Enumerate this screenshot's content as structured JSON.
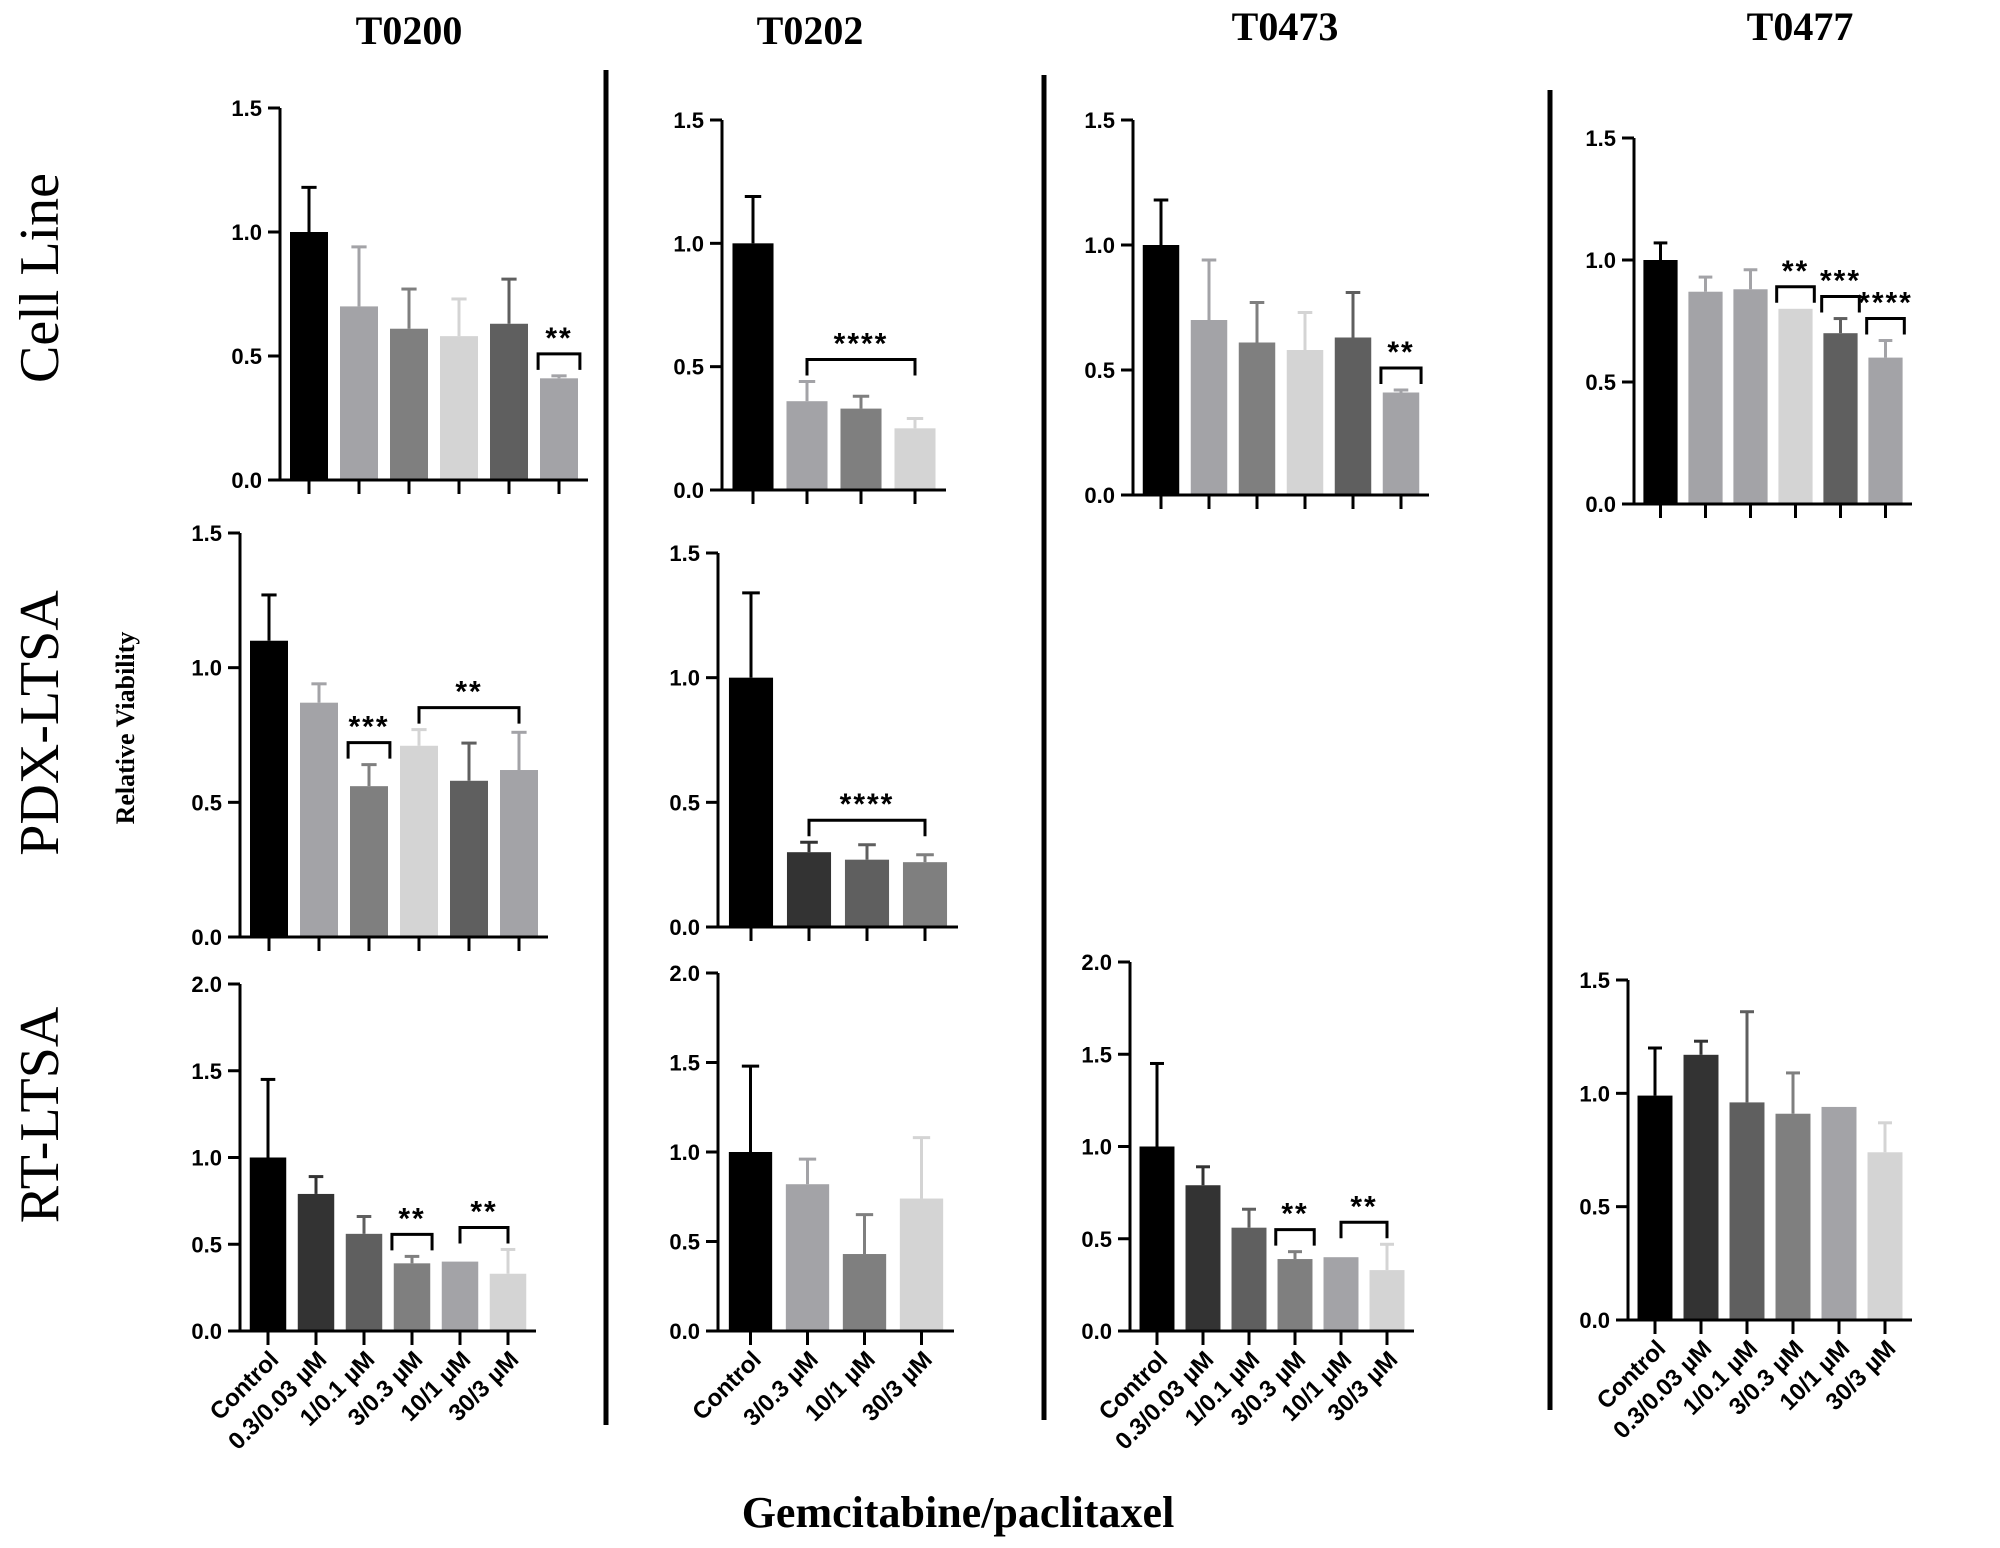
{
  "figure": {
    "column_titles": [
      "T0200",
      "T0202",
      "T0473",
      "T0477"
    ],
    "row_titles": [
      "Cell Line",
      "PDX-LTSA",
      "RT-LTSA"
    ],
    "y_axis_label": "Relative Viability",
    "x_axis_label": "Gemcitabine/paclitaxel"
  },
  "chart_data": [
    {
      "id": "T0200-cell-line",
      "type": "bar",
      "column": "T0200",
      "row": "Cell Line",
      "ylim": [
        0,
        1.5
      ],
      "yticks": [
        "0.0",
        "0.5",
        "1.0",
        "1.5"
      ],
      "categories": [
        "Control",
        "0.3/0.03 µM",
        "1/0.1 µM",
        "3/0.3 µM",
        "10/1 µM",
        "30/3 µM"
      ],
      "values": [
        1.0,
        0.7,
        0.61,
        0.58,
        0.63,
        0.41
      ],
      "errors": [
        0.18,
        0.24,
        0.16,
        0.15,
        0.18,
        0.01
      ],
      "colors": [
        "#000000",
        "#a3a3a7",
        "#7f7f7f",
        "#d4d4d4",
        "#5f5f5f",
        "#a3a3a7"
      ],
      "annotations": [
        {
          "from": 5,
          "to": 5,
          "label": "**"
        }
      ]
    },
    {
      "id": "T0202-cell-line",
      "type": "bar",
      "column": "T0202",
      "row": "Cell Line",
      "ylim": [
        0,
        1.5
      ],
      "yticks": [
        "0.0",
        "0.5",
        "1.0",
        "1.5"
      ],
      "categories": [
        "Control",
        "3/0.3 µM",
        "10/1 µM",
        "30/3 µM"
      ],
      "values": [
        1.0,
        0.36,
        0.33,
        0.25
      ],
      "errors": [
        0.19,
        0.08,
        0.05,
        0.04
      ],
      "colors": [
        "#000000",
        "#a3a3a7",
        "#7f7f7f",
        "#d4d4d4"
      ],
      "annotations": [
        {
          "from": 1,
          "to": 3,
          "label": "****"
        }
      ]
    },
    {
      "id": "T0473-cell-line",
      "type": "bar",
      "column": "T0473",
      "row": "Cell Line",
      "ylim": [
        0,
        1.5
      ],
      "yticks": [
        "0.0",
        "0.5",
        "1.0",
        "1.5"
      ],
      "categories": [
        "Control",
        "0.3/0.03 µM",
        "1/0.1 µM",
        "3/0.3 µM",
        "10/1 µM",
        "30/3 µM"
      ],
      "values": [
        1.0,
        0.7,
        0.61,
        0.58,
        0.63,
        0.41
      ],
      "errors": [
        0.18,
        0.24,
        0.16,
        0.15,
        0.18,
        0.01
      ],
      "colors": [
        "#000000",
        "#a3a3a7",
        "#7f7f7f",
        "#d4d4d4",
        "#5f5f5f",
        "#a3a3a7"
      ],
      "annotations": [
        {
          "from": 5,
          "to": 5,
          "label": "**"
        }
      ]
    },
    {
      "id": "T0477-cell-line",
      "type": "bar",
      "column": "T0477",
      "row": "Cell Line",
      "ylim": [
        0,
        1.5
      ],
      "yticks": [
        "0.0",
        "0.5",
        "1.0",
        "1.5"
      ],
      "categories": [
        "Control",
        "0.3/0.03 µM",
        "1/0.1 µM",
        "3/0.3 µM",
        "10/1 µM",
        "30/3 µM"
      ],
      "values": [
        1.0,
        0.87,
        0.88,
        0.8,
        0.7,
        0.6
      ],
      "errors": [
        0.07,
        0.06,
        0.08,
        0.0,
        0.06,
        0.07
      ],
      "colors": [
        "#000000",
        "#a3a3a7",
        "#a3a3a7",
        "#d4d4d4",
        "#5f5f5f",
        "#a3a3a7"
      ],
      "annotations": [
        {
          "from": 3,
          "to": 3,
          "label": "**"
        },
        {
          "from": 4,
          "to": 4,
          "label": "***"
        },
        {
          "from": 5,
          "to": 5,
          "label": "****"
        }
      ]
    },
    {
      "id": "T0200-pdx-ltsa",
      "type": "bar",
      "column": "T0200",
      "row": "PDX-LTSA",
      "ylim": [
        0,
        1.5
      ],
      "yticks": [
        "0.0",
        "0.5",
        "1.0",
        "1.5"
      ],
      "categories": [
        "Control",
        "0.3/0.03 µM",
        "1/0.1 µM",
        "3/0.3 µM",
        "10/1 µM",
        "30/3 µM"
      ],
      "values": [
        1.1,
        0.87,
        0.56,
        0.71,
        0.58,
        0.62
      ],
      "errors": [
        0.17,
        0.07,
        0.08,
        0.06,
        0.14,
        0.14
      ],
      "colors": [
        "#000000",
        "#a3a3a7",
        "#7f7f7f",
        "#d4d4d4",
        "#5f5f5f",
        "#a3a3a7"
      ],
      "annotations": [
        {
          "from": 2,
          "to": 2,
          "label": "***"
        },
        {
          "from": 3,
          "to": 5,
          "label": "**"
        }
      ]
    },
    {
      "id": "T0202-pdx-ltsa",
      "type": "bar",
      "column": "T0202",
      "row": "PDX-LTSA",
      "ylim": [
        0,
        1.5
      ],
      "yticks": [
        "0.0",
        "0.5",
        "1.0",
        "1.5"
      ],
      "categories": [
        "Control",
        "3/0.3 µM",
        "10/1 µM",
        "30/3 µM"
      ],
      "values": [
        1.0,
        0.3,
        0.27,
        0.26
      ],
      "errors": [
        0.34,
        0.04,
        0.06,
        0.03
      ],
      "colors": [
        "#000000",
        "#333333",
        "#5f5f5f",
        "#7f7f7f"
      ],
      "annotations": [
        {
          "from": 1,
          "to": 3,
          "label": "****"
        }
      ]
    },
    {
      "id": "T0200-rt-ltsa",
      "type": "bar",
      "column": "T0200",
      "row": "RT-LTSA",
      "ylim": [
        0,
        2.0
      ],
      "yticks": [
        "0.0",
        "0.5",
        "1.0",
        "1.5",
        "2.0"
      ],
      "categories": [
        "Control",
        "0.3/0.03 µM",
        "1/0.1 µM",
        "3/0.3 µM",
        "10/1 µM",
        "30/3 µM"
      ],
      "values": [
        1.0,
        0.79,
        0.56,
        0.39,
        0.4,
        0.33
      ],
      "errors": [
        0.45,
        0.1,
        0.1,
        0.04,
        0.0,
        0.14
      ],
      "colors": [
        "#000000",
        "#333333",
        "#5f5f5f",
        "#7f7f7f",
        "#a3a3a7",
        "#d4d4d4"
      ],
      "annotations": [
        {
          "from": 3,
          "to": 3,
          "label": "**"
        },
        {
          "from": 4,
          "to": 5,
          "label": "**"
        }
      ]
    },
    {
      "id": "T0202-rt-ltsa",
      "type": "bar",
      "column": "T0202",
      "row": "RT-LTSA",
      "ylim": [
        0,
        2.0
      ],
      "yticks": [
        "0.0",
        "0.5",
        "1.0",
        "1.5",
        "2.0"
      ],
      "categories": [
        "Control",
        "3/0.3 µM",
        "10/1 µM",
        "30/3 µM"
      ],
      "values": [
        1.0,
        0.82,
        0.43,
        0.74
      ],
      "errors": [
        0.48,
        0.14,
        0.22,
        0.34
      ],
      "colors": [
        "#000000",
        "#a3a3a7",
        "#7f7f7f",
        "#d4d4d4"
      ],
      "annotations": []
    },
    {
      "id": "T0473-rt-ltsa",
      "type": "bar",
      "column": "T0473",
      "row": "RT-LTSA",
      "ylim": [
        0,
        2.0
      ],
      "yticks": [
        "0.0",
        "0.5",
        "1.0",
        "1.5",
        "2.0"
      ],
      "categories": [
        "Control",
        "0.3/0.03 µM",
        "1/0.1 µM",
        "3/0.3 µM",
        "10/1 µM",
        "30/3 µM"
      ],
      "values": [
        1.0,
        0.79,
        0.56,
        0.39,
        0.4,
        0.33
      ],
      "errors": [
        0.45,
        0.1,
        0.1,
        0.04,
        0.0,
        0.14
      ],
      "colors": [
        "#000000",
        "#333333",
        "#5f5f5f",
        "#7f7f7f",
        "#a3a3a7",
        "#d4d4d4"
      ],
      "annotations": [
        {
          "from": 3,
          "to": 3,
          "label": "**"
        },
        {
          "from": 4,
          "to": 5,
          "label": "**"
        }
      ]
    },
    {
      "id": "T0477-rt-ltsa",
      "type": "bar",
      "column": "T0477",
      "row": "RT-LTSA",
      "ylim": [
        0,
        1.5
      ],
      "yticks": [
        "0.0",
        "0.5",
        "1.0",
        "1.5"
      ],
      "categories": [
        "Control",
        "0.3/0.03 µM",
        "1/0.1 µM",
        "3/0.3 µM",
        "10/1 µM",
        "30/3 µM"
      ],
      "values": [
        0.99,
        1.17,
        0.96,
        0.91,
        0.94,
        0.74
      ],
      "errors": [
        0.21,
        0.06,
        0.4,
        0.18,
        0.0,
        0.13
      ],
      "colors": [
        "#000000",
        "#333333",
        "#5f5f5f",
        "#7f7f7f",
        "#a3a3a7",
        "#d4d4d4"
      ],
      "annotations": []
    }
  ]
}
